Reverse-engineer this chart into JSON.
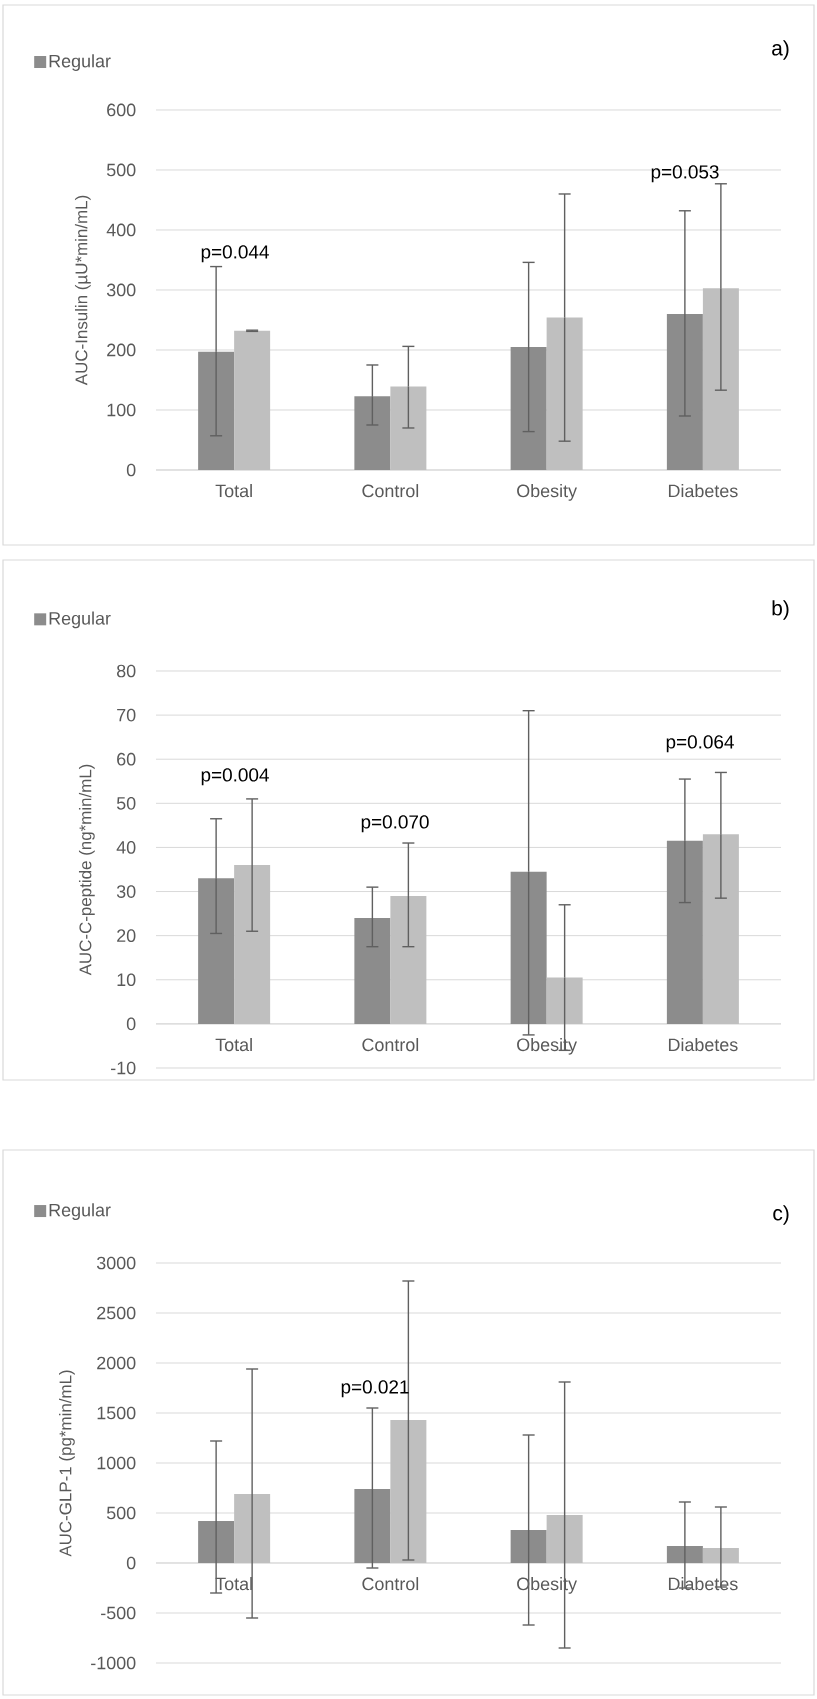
{
  "chart_data": [
    {
      "type": "bar",
      "ylabel": "AUC-Insulin (µU*min/mL)",
      "categories": [
        "Total",
        "Control",
        "Obesity",
        "Diabetes"
      ],
      "series": [
        {
          "name": "Regular",
          "color": "#8c8c8c",
          "values": [
            197,
            123,
            205,
            260
          ],
          "errors": [
            [
              57,
              339
            ],
            [
              75,
              175
            ],
            [
              64,
              346
            ],
            [
              90,
              432
            ]
          ]
        },
        {
          "color": "#bfbfbf",
          "values": [
            232,
            139,
            254,
            303
          ],
          "errors": [
            [
              231,
              233
            ],
            [
              70,
              206
            ],
            [
              48,
              460
            ],
            [
              133,
              477
            ]
          ]
        }
      ],
      "ylim": [
        0,
        600
      ],
      "yticks": [
        0,
        100,
        200,
        300,
        400,
        500,
        600
      ],
      "grid": "y",
      "legend": "top left",
      "annotations": [
        "a)",
        "p=0.044",
        "p=0.053"
      ]
    },
    {
      "type": "bar",
      "ylabel": "AUC-C-peptide (ng*min/mL)",
      "categories": [
        "Total",
        "Control",
        "Obesity",
        "Diabetes"
      ],
      "series": [
        {
          "name": "Regular",
          "color": "#8c8c8c",
          "values": [
            33,
            24,
            34.5,
            41.5
          ],
          "errors": [
            [
              20.5,
              46.5
            ],
            [
              17.5,
              31
            ],
            [
              -2.5,
              71
            ],
            [
              27.5,
              55.5
            ]
          ]
        },
        {
          "color": "#bfbfbf",
          "values": [
            36,
            29,
            10.5,
            43
          ],
          "errors": [
            [
              21,
              51
            ],
            [
              17.5,
              41
            ],
            [
              -6,
              27
            ],
            [
              28.5,
              57
            ]
          ]
        }
      ],
      "ylim": [
        -10,
        80
      ],
      "yticks": [
        -10,
        0,
        10,
        20,
        30,
        40,
        50,
        60,
        70,
        80
      ],
      "grid": "y",
      "legend": "top left",
      "annotations": [
        "b)",
        "p=0.004",
        "p=0.070",
        "p=0.064"
      ]
    },
    {
      "type": "bar",
      "ylabel": "AUC-GLP-1 (pg*min/mL)",
      "categories": [
        "Total",
        "Control",
        "Obesity",
        "Diabetes"
      ],
      "series": [
        {
          "name": "Regular",
          "color": "#8c8c8c",
          "values": [
            420,
            740,
            330,
            170
          ],
          "errors": [
            [
              -300,
              1220
            ],
            [
              -50,
              1550
            ],
            [
              -620,
              1280
            ],
            [
              -250,
              610
            ]
          ]
        },
        {
          "color": "#bfbfbf",
          "values": [
            690,
            1430,
            480,
            150
          ],
          "errors": [
            [
              -550,
              1940
            ],
            [
              30,
              2820
            ],
            [
              -850,
              1810
            ],
            [
              -240,
              560
            ]
          ]
        }
      ],
      "ylim": [
        -1000,
        3000
      ],
      "yticks": [
        -1000,
        -500,
        0,
        500,
        1000,
        1500,
        2000,
        2500,
        3000
      ],
      "grid": "y",
      "legend": "top left",
      "annotations": [
        "c)",
        "p=0.021"
      ]
    }
  ]
}
